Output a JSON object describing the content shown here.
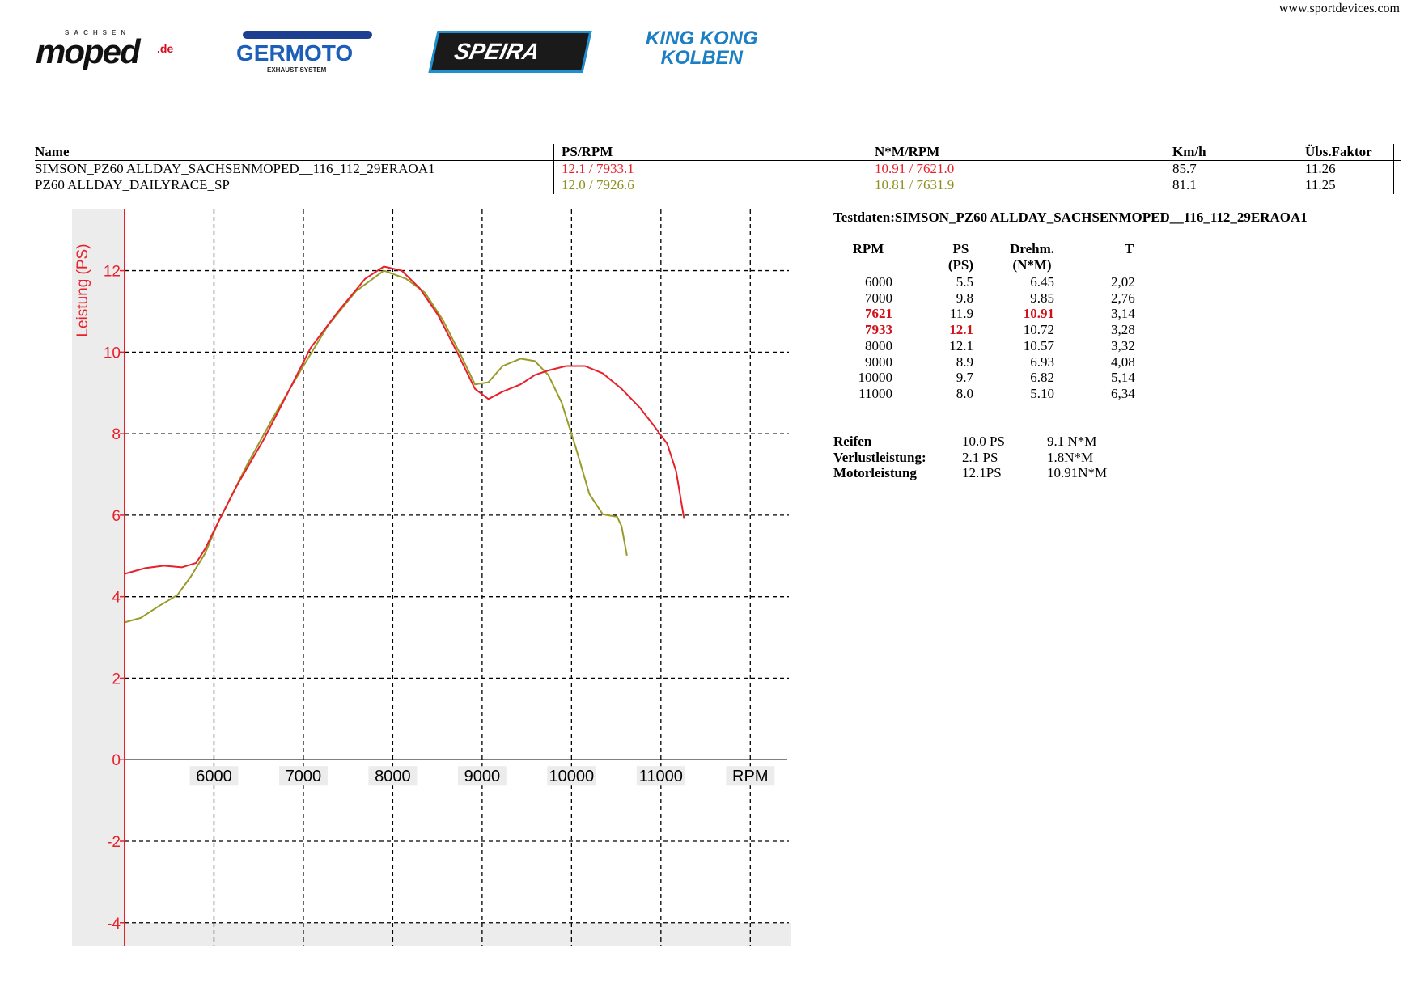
{
  "header": {
    "website": "www.sportdevices.com",
    "logos": {
      "moped_top": "SACHSEN",
      "moped": "moped",
      "moped_suffix": ".de",
      "germoto": "GERMOTO",
      "germoto_sub": "EXHAUST SYSTEM",
      "speira": "SPEIRA",
      "kingkong": [
        "KING KONG",
        "KOLBEN"
      ]
    }
  },
  "comparison_table": {
    "columns": [
      "Name",
      "PS/RPM",
      "N*M/RPM",
      "Km/h",
      "Übs.Faktor"
    ],
    "rows": [
      [
        "SIMSON_PZ60 ALLDAY_SACHSENMOPED__116_112_29ERAOA1",
        "12.1 / 7933.1",
        "10.91 / 7621.0",
        "85.7",
        "11.26"
      ],
      [
        "PZ60 ALLDAY_DAILYRACE_SP",
        "12.0 / 7926.6",
        "10.81 / 7631.9",
        "81.1",
        "11.25"
      ]
    ]
  },
  "chart_data": {
    "type": "line",
    "y_label": "Leistung (PS)",
    "xlim": [
      5000,
      12450
    ],
    "ylim": [
      -4.56,
      13.5
    ],
    "xticks": [
      6000,
      7000,
      8000,
      9000,
      10000,
      11000,
      {
        "value": 12000,
        "label": "RPM"
      }
    ],
    "yticks": [
      -4,
      -2,
      0,
      2,
      4,
      6,
      8,
      10,
      12
    ],
    "grid": true,
    "series": [
      {
        "color": "#e8202a",
        "x": [
          5000,
          5230,
          5440,
          5640,
          5800,
          5900,
          6050,
          6260,
          6560,
          6770,
          7080,
          7390,
          7690,
          7900,
          8100,
          8300,
          8510,
          8720,
          8920,
          9070,
          9230,
          9430,
          9590,
          9740,
          9940,
          10150,
          10350,
          10560,
          10760,
          10920,
          11070,
          11170,
          11260
        ],
        "values": [
          4.56,
          4.7,
          4.76,
          4.72,
          4.83,
          5.17,
          5.84,
          6.74,
          7.87,
          8.76,
          10.1,
          11.0,
          11.8,
          12.1,
          12.0,
          11.57,
          10.9,
          10.0,
          9.1,
          8.85,
          9.03,
          9.21,
          9.44,
          9.55,
          9.66,
          9.66,
          9.48,
          9.1,
          8.65,
          8.2,
          7.75,
          7.08,
          5.91
        ]
      },
      {
        "color": "#9a9a2a",
        "x": [
          5000,
          5180,
          5390,
          5590,
          5740,
          5900,
          6050,
          6360,
          6670,
          6970,
          7280,
          7590,
          7900,
          8150,
          8360,
          8560,
          8770,
          8920,
          9070,
          9230,
          9430,
          9590,
          9740,
          9890,
          10050,
          10200,
          10350,
          10510,
          10560,
          10620
        ],
        "values": [
          3.37,
          3.48,
          3.78,
          4.04,
          4.49,
          5.06,
          5.84,
          7.19,
          8.43,
          9.55,
          10.67,
          11.5,
          12.0,
          11.8,
          11.46,
          10.79,
          9.89,
          9.21,
          9.26,
          9.66,
          9.84,
          9.78,
          9.44,
          8.76,
          7.64,
          6.52,
          6.02,
          5.96,
          5.73,
          5.01
        ]
      }
    ]
  },
  "test_data": {
    "title": "Testdaten:SIMSON_PZ60 ALLDAY_SACHSENMOPED__116_112_29ERAOA1",
    "columns": [
      [
        "RPM"
      ],
      [
        "PS",
        "(PS)"
      ],
      [
        "Drehm.",
        "(N*M)"
      ],
      [
        "T"
      ]
    ],
    "rows": [
      [
        "6000",
        "5.5",
        "6.45",
        "2,02"
      ],
      [
        "7000",
        "9.8",
        "9.85",
        "2,76"
      ],
      [
        "7621",
        "11.9",
        "10.91",
        "3,14"
      ],
      [
        "7933",
        "12.1",
        "10.72",
        "3,28"
      ],
      [
        "8000",
        "12.1",
        "10.57",
        "3,32"
      ],
      [
        "9000",
        "8.9",
        "6.93",
        "4,08"
      ],
      [
        "10000",
        "9.7",
        "6.82",
        "5,14"
      ],
      [
        "11000",
        "8.0",
        "5.10",
        "6,34"
      ]
    ]
  },
  "summary": {
    "rows": [
      [
        "Reifen",
        "10.0 PS",
        "9.1 N*M"
      ],
      [
        "Verlustleistung:",
        "2.1 PS",
        "1.8N*M"
      ],
      [
        "Motorleistung",
        "12.1PS",
        "10.91N*M"
      ]
    ]
  }
}
